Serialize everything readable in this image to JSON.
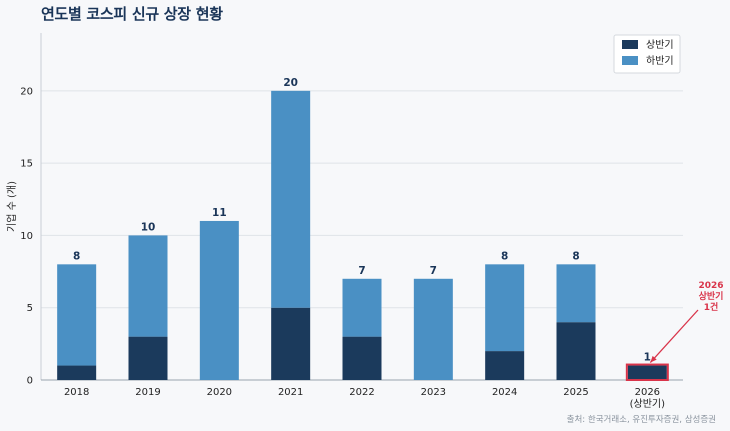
{
  "chart_data": {
    "type": "bar",
    "stacked": true,
    "title": "연도별 코스피 신규 상장 현황",
    "ylabel": "기업 수 (개)",
    "xlabel": "",
    "categories": [
      "2018",
      "2019",
      "2020",
      "2021",
      "2022",
      "2023",
      "2024",
      "2025",
      "2026\n(상반기)"
    ],
    "series": [
      {
        "name": "상반기",
        "color": "#1b3a5c",
        "values": [
          1,
          3,
          0,
          5,
          3,
          0,
          2,
          4,
          1
        ]
      },
      {
        "name": "하반기",
        "color": "#4a90c4",
        "values": [
          7,
          7,
          11,
          15,
          4,
          7,
          6,
          4,
          0
        ]
      }
    ],
    "totals": [
      8,
      10,
      11,
      20,
      7,
      7,
      8,
      8,
      1
    ],
    "ylim": [
      0,
      24
    ],
    "yticks": [
      0,
      5,
      10,
      15,
      20
    ],
    "grid": true,
    "legend_position": "top-right",
    "highlight": {
      "index": 8,
      "color": "#d9344a",
      "annotation": "2026\n상반기\n1건"
    },
    "source": "출처: 한국거래소, 유진투자증권, 삼성증권"
  }
}
